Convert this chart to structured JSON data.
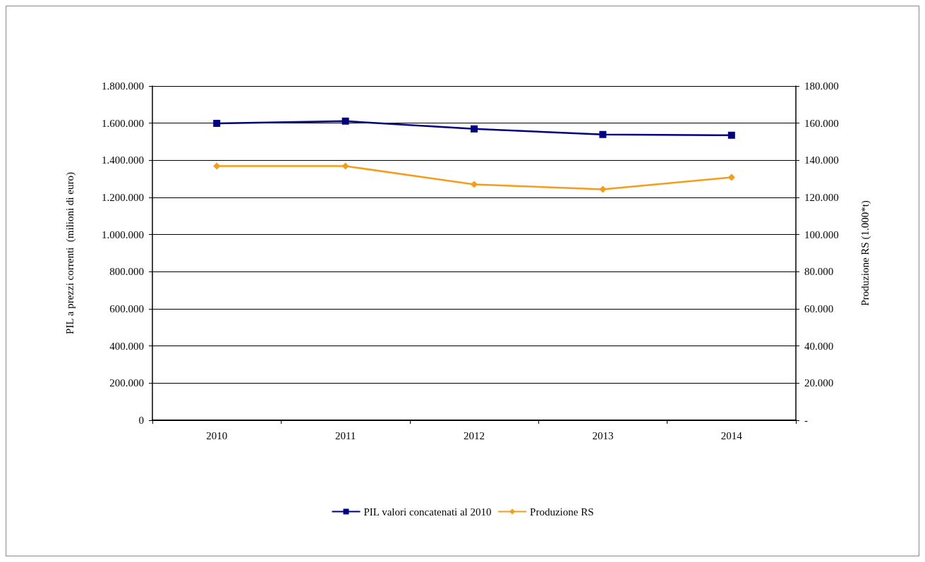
{
  "chart_data": {
    "type": "line",
    "ylabel": "PIL a prezzi correnti  (milioni di euro)",
    "y2label": "Produzione RS (1.000*t)",
    "categories": [
      "2010",
      "2011",
      "2012",
      "2013",
      "2014"
    ],
    "series": [
      {
        "name": "PIL valori concatenati al 2010",
        "color": "#000080",
        "marker": "square",
        "values": [
          1599000,
          1611000,
          1569000,
          1539000,
          1535000
        ]
      },
      {
        "name": "Produzione RS",
        "color": "#f59c1a",
        "marker": "diamond",
        "axis": "y2",
        "values": [
          136900,
          136900,
          127000,
          124400,
          130800
        ]
      }
    ],
    "ylim": [
      0,
      1800000
    ],
    "yticks": [
      0,
      {
        "value": 200000,
        "label": "200.000"
      },
      {
        "value": 400000,
        "label": "400.000"
      },
      {
        "value": 600000,
        "label": "600.000"
      },
      {
        "value": 800000,
        "label": "800.000"
      },
      {
        "value": 1000000,
        "label": "1.000.000"
      },
      {
        "value": 1200000,
        "label": "1.200.000"
      },
      {
        "value": 1400000,
        "label": "1.400.000"
      },
      {
        "value": 1600000,
        "label": "1.600.000"
      },
      {
        "value": 1800000,
        "label": "1.800.000"
      }
    ],
    "y2lim": [
      0,
      180000
    ],
    "y2ticks": [
      {
        "value": 0,
        "label": "-"
      },
      {
        "value": 20000,
        "label": "20.000"
      },
      {
        "value": 40000,
        "label": "40.000"
      },
      {
        "value": 60000,
        "label": "60.000"
      },
      {
        "value": 80000,
        "label": "80.000"
      },
      {
        "value": 100000,
        "label": "100.000"
      },
      {
        "value": 120000,
        "label": "120.000"
      },
      {
        "value": 140000,
        "label": "140.000"
      },
      {
        "value": 160000,
        "label": "160.000"
      },
      {
        "value": 180000,
        "label": "180.000"
      }
    ],
    "grid": "y",
    "legend": "bottom",
    "line_style": "solid"
  }
}
